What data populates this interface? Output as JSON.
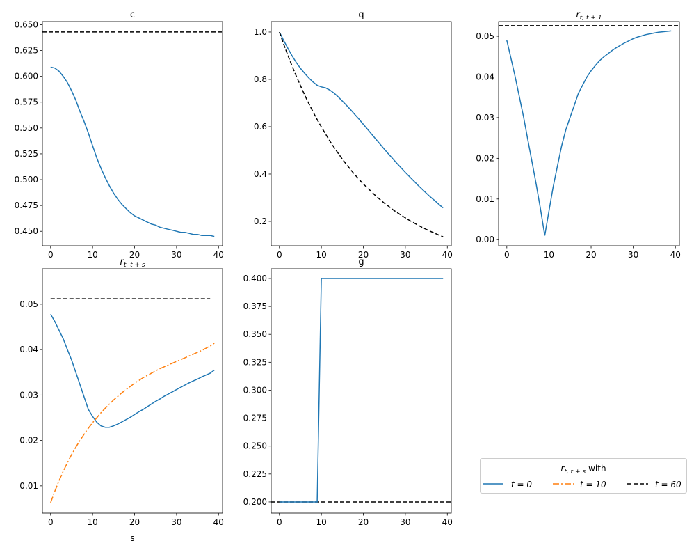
{
  "chart_data": [
    {
      "type": "line",
      "title": "c",
      "xlim": [
        -1.95,
        40.95
      ],
      "ylim": [
        0.436,
        0.653
      ],
      "xticks": [
        0,
        10,
        20,
        30,
        40
      ],
      "yticks": [
        0.45,
        0.475,
        0.5,
        0.525,
        0.55,
        0.575,
        0.6,
        0.625,
        0.65
      ],
      "ydec": 3,
      "series": [
        {
          "color": "#1f77b4",
          "style": "solid",
          "x0": 0,
          "values": [
            0.609,
            0.608,
            0.605,
            0.6,
            0.594,
            0.586,
            0.577,
            0.566,
            0.556,
            0.545,
            0.533,
            0.521,
            0.511,
            0.502,
            0.494,
            0.487,
            0.481,
            0.476,
            0.472,
            0.468,
            0.465,
            0.463,
            0.461,
            0.459,
            0.457,
            0.456,
            0.454,
            0.453,
            0.452,
            0.451,
            0.45,
            0.449,
            0.449,
            0.448,
            0.447,
            0.447,
            0.446,
            0.446,
            0.446,
            0.445
          ]
        }
      ],
      "hline": {
        "y": 0.643,
        "color": "#000000",
        "style": "dashed"
      }
    },
    {
      "type": "line",
      "title": "q",
      "xlim": [
        -1.95,
        40.95
      ],
      "ylim": [
        0.097,
        1.044
      ],
      "xticks": [
        0,
        10,
        20,
        30,
        40
      ],
      "yticks": [
        0.2,
        0.4,
        0.6,
        0.8,
        1.0
      ],
      "ydec": 1,
      "series": [
        {
          "color": "#1f77b4",
          "style": "solid",
          "x0": 0,
          "values": [
            1.0,
            0.965,
            0.932,
            0.9,
            0.872,
            0.847,
            0.826,
            0.806,
            0.789,
            0.775,
            0.768,
            0.764,
            0.755,
            0.742,
            0.726,
            0.708,
            0.69,
            0.671,
            0.651,
            0.631,
            0.61,
            0.589,
            0.568,
            0.547,
            0.526,
            0.505,
            0.485,
            0.465,
            0.445,
            0.426,
            0.407,
            0.389,
            0.371,
            0.353,
            0.336,
            0.319,
            0.303,
            0.288,
            0.272,
            0.257
          ]
        },
        {
          "color": "#000000",
          "style": "dashed",
          "x0": 0,
          "values": [
            1,
            0.95,
            0.9025,
            0.857,
            0.815,
            0.774,
            0.735,
            0.698,
            0.663,
            0.63,
            0.599,
            0.569,
            0.54,
            0.513,
            0.488,
            0.463,
            0.44,
            0.418,
            0.397,
            0.377,
            0.358,
            0.341,
            0.324,
            0.307,
            0.292,
            0.277,
            0.264,
            0.25,
            0.238,
            0.226,
            0.215,
            0.204,
            0.194,
            0.184,
            0.175,
            0.166,
            0.158,
            0.15,
            0.142,
            0.135
          ]
        }
      ]
    },
    {
      "type": "line",
      "title": "r_{t,t+1}",
      "title_main": "r",
      "title_sub": "t, t + 1",
      "xlim": [
        -1.95,
        40.95
      ],
      "ylim": [
        -0.0015,
        0.0536
      ],
      "xticks": [
        0,
        10,
        20,
        30,
        40
      ],
      "yticks": [
        0,
        0.01,
        0.02,
        0.03,
        0.04,
        0.05
      ],
      "ydec": 2,
      "series": [
        {
          "color": "#1f77b4",
          "style": "solid",
          "x0": 0,
          "values": [
            0.049,
            0.0445,
            0.04,
            0.035,
            0.03,
            0.0245,
            0.019,
            0.0135,
            0.0075,
            0.001,
            0.007,
            0.013,
            0.018,
            0.023,
            0.027,
            0.03,
            0.033,
            0.036,
            0.038,
            0.04,
            0.0415,
            0.0428,
            0.044,
            0.0449,
            0.0457,
            0.0465,
            0.0472,
            0.0478,
            0.0484,
            0.0489,
            0.0494,
            0.0498,
            0.0501,
            0.0504,
            0.0506,
            0.0508,
            0.051,
            0.0511,
            0.0512,
            0.0513
          ]
        }
      ],
      "hline": {
        "y": 0.0526,
        "color": "#000000",
        "style": "dashed"
      }
    },
    {
      "type": "line",
      "title": "r_{t,t+s}",
      "title_main": "r",
      "title_sub": "t, t + s",
      "xlabel": "s",
      "xlim": [
        -1.95,
        40.95
      ],
      "ylim": [
        0.004,
        0.0578
      ],
      "xticks": [
        0,
        10,
        20,
        30,
        40
      ],
      "yticks": [
        0.01,
        0.02,
        0.03,
        0.04,
        0.05
      ],
      "ydec": 2,
      "series": [
        {
          "name": "t = 0",
          "color": "#1f77b4",
          "style": "solid",
          "x0": 0,
          "values": [
            0.0478,
            0.0462,
            0.0443,
            0.0424,
            0.04,
            0.0377,
            0.035,
            0.0323,
            0.0295,
            0.0268,
            0.0253,
            0.024,
            0.0232,
            0.0229,
            0.0229,
            0.0232,
            0.0236,
            0.0241,
            0.0246,
            0.0251,
            0.0257,
            0.0263,
            0.0268,
            0.0274,
            0.028,
            0.0286,
            0.0291,
            0.0297,
            0.0302,
            0.0307,
            0.0312,
            0.0317,
            0.0322,
            0.0327,
            0.0331,
            0.0335,
            0.034,
            0.0344,
            0.0348,
            0.0355
          ]
        },
        {
          "name": "t = 10",
          "color": "#ff7f0e",
          "style": "dashdot",
          "x0": 0,
          "values": [
            0.0063,
            0.0088,
            0.0111,
            0.0132,
            0.0151,
            0.0169,
            0.0185,
            0.02,
            0.0214,
            0.0227,
            0.0239,
            0.025,
            0.0261,
            0.0271,
            0.028,
            0.0289,
            0.0297,
            0.0305,
            0.0312,
            0.0319,
            0.0326,
            0.0332,
            0.0338,
            0.0343,
            0.0348,
            0.0353,
            0.0358,
            0.0362,
            0.0366,
            0.037,
            0.0374,
            0.0378,
            0.0382,
            0.0386,
            0.039,
            0.0394,
            0.0398,
            0.0403,
            0.0408,
            0.0414
          ]
        },
        {
          "name": "t = 60",
          "color": "#000000",
          "style": "dashed",
          "x0": 0,
          "values": [
            0.0512,
            0.0512,
            0.0512,
            0.0512,
            0.0512,
            0.0512,
            0.0512,
            0.0512,
            0.0512,
            0.0512,
            0.0512,
            0.0512,
            0.0512,
            0.0512,
            0.0512,
            0.0512,
            0.0512,
            0.0512,
            0.0512,
            0.0512,
            0.0512,
            0.0512,
            0.0512,
            0.0512,
            0.0512,
            0.0512,
            0.0512,
            0.0512,
            0.0512,
            0.0512,
            0.0512,
            0.0512,
            0.0512,
            0.0512,
            0.0512,
            0.0512,
            0.0512,
            0.0512,
            0.0512
          ]
        }
      ]
    },
    {
      "type": "line",
      "title": "g",
      "xlim": [
        -1.95,
        40.95
      ],
      "ylim": [
        0.19,
        0.4087
      ],
      "xticks": [
        0,
        10,
        20,
        30,
        40
      ],
      "yticks": [
        0.2,
        0.225,
        0.25,
        0.275,
        0.3,
        0.325,
        0.35,
        0.375,
        0.4
      ],
      "ydec": 3,
      "series": [
        {
          "color": "#1f77b4",
          "style": "solid",
          "x0": 0,
          "values": [
            0.2,
            0.2,
            0.2,
            0.2,
            0.2,
            0.2,
            0.2,
            0.2,
            0.2,
            0.2,
            0.4,
            0.4,
            0.4,
            0.4,
            0.4,
            0.4,
            0.4,
            0.4,
            0.4,
            0.4,
            0.4,
            0.4,
            0.4,
            0.4,
            0.4,
            0.4,
            0.4,
            0.4,
            0.4,
            0.4,
            0.4,
            0.4,
            0.4,
            0.4,
            0.4,
            0.4,
            0.4,
            0.4,
            0.4,
            0.4
          ]
        }
      ],
      "hline": {
        "y": 0.2,
        "color": "#000000",
        "style": "dashed"
      }
    }
  ],
  "legend": {
    "title_main": "r",
    "title_sub": "t, t + s",
    "title_suffix": "with",
    "entries": [
      "t = 0",
      "t = 10",
      "t = 60"
    ],
    "placement": "lower-right"
  }
}
